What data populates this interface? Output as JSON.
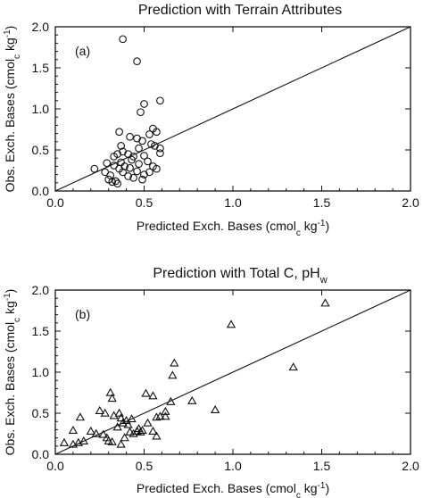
{
  "chart_data": [
    {
      "type": "scatter",
      "panel_label": "(a)",
      "title": "Prediction with Terrain Attributes",
      "xlabel": {
        "text": "Predicted Exch. Bases (cmol",
        "sub": "c",
        "mid": " kg",
        "sup": "-1",
        "end": ")"
      },
      "ylabel": {
        "text": "Obs. Exch. Bases (cmol",
        "sub": "c",
        "mid": " kg",
        "sup": "-1",
        "end": ")"
      },
      "xlim": [
        0,
        2
      ],
      "ylim": [
        0,
        2
      ],
      "xticks": [
        "0.0",
        "0.5",
        "1.0",
        "1.5",
        "2.0"
      ],
      "yticks": [
        "0.0",
        "0.5",
        "1.0",
        "1.5",
        "2.0"
      ],
      "marker": "circle",
      "reference_line": "1:1",
      "grid": false,
      "points": [
        [
          0.38,
          1.85
        ],
        [
          0.46,
          1.58
        ],
        [
          0.59,
          1.1
        ],
        [
          0.5,
          1.06
        ],
        [
          0.48,
          0.96
        ],
        [
          0.55,
          0.76
        ],
        [
          0.57,
          0.72
        ],
        [
          0.53,
          0.69
        ],
        [
          0.36,
          0.72
        ],
        [
          0.37,
          0.55
        ],
        [
          0.42,
          0.66
        ],
        [
          0.46,
          0.64
        ],
        [
          0.49,
          0.61
        ],
        [
          0.54,
          0.57
        ],
        [
          0.56,
          0.55
        ],
        [
          0.59,
          0.52
        ],
        [
          0.47,
          0.52
        ],
        [
          0.33,
          0.42
        ],
        [
          0.35,
          0.45
        ],
        [
          0.38,
          0.48
        ],
        [
          0.41,
          0.45
        ],
        [
          0.44,
          0.42
        ],
        [
          0.5,
          0.43
        ],
        [
          0.52,
          0.36
        ],
        [
          0.43,
          0.38
        ],
        [
          0.37,
          0.35
        ],
        [
          0.33,
          0.31
        ],
        [
          0.29,
          0.34
        ],
        [
          0.39,
          0.3
        ],
        [
          0.42,
          0.28
        ],
        [
          0.47,
          0.33
        ],
        [
          0.55,
          0.3
        ],
        [
          0.57,
          0.27
        ],
        [
          0.22,
          0.27
        ],
        [
          0.28,
          0.23
        ],
        [
          0.31,
          0.19
        ],
        [
          0.36,
          0.27
        ],
        [
          0.38,
          0.23
        ],
        [
          0.41,
          0.18
        ],
        [
          0.46,
          0.24
        ],
        [
          0.5,
          0.2
        ],
        [
          0.53,
          0.23
        ],
        [
          0.3,
          0.14
        ],
        [
          0.32,
          0.11
        ],
        [
          0.34,
          0.12
        ],
        [
          0.35,
          0.09
        ],
        [
          0.49,
          0.14
        ],
        [
          0.44,
          0.16
        ],
        [
          0.59,
          0.46
        ]
      ]
    },
    {
      "type": "scatter",
      "panel_label": "(b)",
      "title": "Prediction with Total C, pH",
      "title_sub": "w",
      "xlabel": {
        "text": "Predicted Exch. Bases (cmol",
        "sub": "c",
        "mid": " kg",
        "sup": "-1",
        "end": ")"
      },
      "ylabel": {
        "text": "Obs. Exch. Bases (cmol",
        "sub": "c",
        "mid": " kg",
        "sup": "-1",
        "end": ")"
      },
      "xlim": [
        0,
        2
      ],
      "ylim": [
        0,
        2
      ],
      "xticks": [
        "0.0",
        "0.5",
        "1.0",
        "1.5",
        "2.0"
      ],
      "yticks": [
        "0.0",
        "0.5",
        "1.0",
        "1.5",
        "2.0"
      ],
      "marker": "triangle",
      "reference_line": "1:1",
      "grid": false,
      "points": [
        [
          1.52,
          1.84
        ],
        [
          0.99,
          1.58
        ],
        [
          1.34,
          1.06
        ],
        [
          0.67,
          1.11
        ],
        [
          0.9,
          0.54
        ],
        [
          0.66,
          0.96
        ],
        [
          0.77,
          0.65
        ],
        [
          0.65,
          0.64
        ],
        [
          0.55,
          0.71
        ],
        [
          0.51,
          0.74
        ],
        [
          0.31,
          0.75
        ],
        [
          0.32,
          0.68
        ],
        [
          0.25,
          0.53
        ],
        [
          0.28,
          0.5
        ],
        [
          0.33,
          0.47
        ],
        [
          0.36,
          0.5
        ],
        [
          0.37,
          0.44
        ],
        [
          0.4,
          0.41
        ],
        [
          0.43,
          0.43
        ],
        [
          0.38,
          0.38
        ],
        [
          0.41,
          0.36
        ],
        [
          0.14,
          0.45
        ],
        [
          0.1,
          0.29
        ],
        [
          0.05,
          0.14
        ],
        [
          0.1,
          0.12
        ],
        [
          0.13,
          0.14
        ],
        [
          0.16,
          0.16
        ],
        [
          0.2,
          0.28
        ],
        [
          0.23,
          0.25
        ],
        [
          0.27,
          0.24
        ],
        [
          0.3,
          0.16
        ],
        [
          0.32,
          0.15
        ],
        [
          0.37,
          0.12
        ],
        [
          0.39,
          0.2
        ],
        [
          0.42,
          0.27
        ],
        [
          0.44,
          0.25
        ],
        [
          0.47,
          0.31
        ],
        [
          0.49,
          0.29
        ],
        [
          0.52,
          0.38
        ],
        [
          0.55,
          0.28
        ],
        [
          0.57,
          0.22
        ],
        [
          0.59,
          0.46
        ],
        [
          0.62,
          0.52
        ],
        [
          0.62,
          0.46
        ],
        [
          0.46,
          0.28
        ],
        [
          0.35,
          0.33
        ],
        [
          0.29,
          0.2
        ],
        [
          0.48,
          0.27
        ],
        [
          0.57,
          0.45
        ]
      ]
    }
  ]
}
